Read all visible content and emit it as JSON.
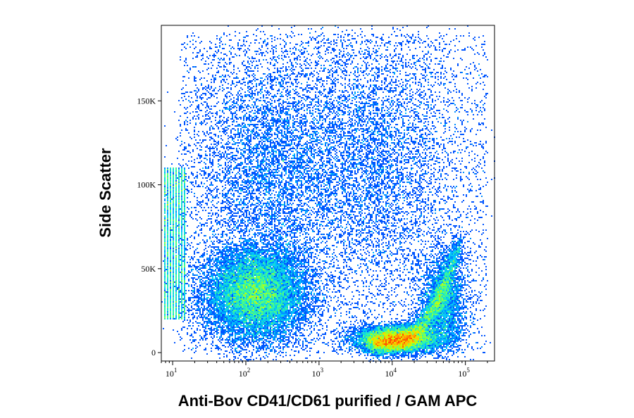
{
  "chart_data": {
    "type": "heatmap",
    "title": "",
    "xlabel": "Anti-Bov CD41/CD61 purified / GAM APC",
    "ylabel": "Side Scatter",
    "x_scale": "log",
    "xlim": [
      7,
      250000
    ],
    "ylim": [
      -5000,
      195000
    ],
    "x_ticks": [
      {
        "value": 10,
        "base": "10",
        "exp": "1"
      },
      {
        "value": 100,
        "base": "10",
        "exp": "2"
      },
      {
        "value": 1000,
        "base": "10",
        "exp": "3"
      },
      {
        "value": 10000,
        "base": "10",
        "exp": "4"
      },
      {
        "value": 100000,
        "base": "10",
        "exp": "5"
      }
    ],
    "y_ticks": [
      {
        "value": 0,
        "label": "0"
      },
      {
        "value": 50000,
        "label": "50K"
      },
      {
        "value": 100000,
        "label": "100K"
      },
      {
        "value": 150000,
        "label": "150K"
      }
    ],
    "grid": false,
    "legend": "none",
    "colormap": [
      "#0000c8",
      "#0050ff",
      "#00c8ff",
      "#40ff90",
      "#c8ff00",
      "#ffc800",
      "#ff5000"
    ],
    "populations": [
      {
        "x_center": 140,
        "x_spread_decades": 0.35,
        "y_center": 35000,
        "y_spread": 14000,
        "density": "highest"
      },
      {
        "x_center": 12000,
        "x_spread_decades": 0.3,
        "y_center": 8000,
        "y_spread": 4000,
        "density": "high"
      },
      {
        "x_center": 50000,
        "x_spread_decades": 0.15,
        "y_center": 30000,
        "y_spread": 14000,
        "density": "medium"
      },
      {
        "x_center": 5000,
        "x_spread_decades": 0.6,
        "y_center": 115000,
        "y_spread": 40000,
        "density": "low"
      },
      {
        "x_center": 200,
        "x_spread_decades": 0.5,
        "y_center": 110000,
        "y_spread": 35000,
        "density": "low"
      }
    ]
  }
}
